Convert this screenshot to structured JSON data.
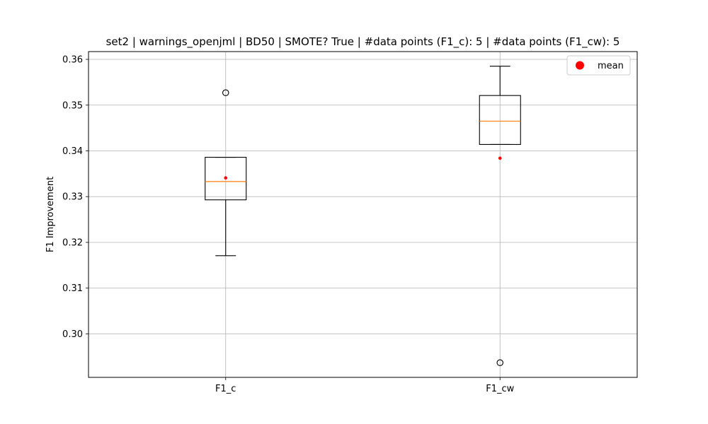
{
  "chart_data": {
    "type": "box",
    "title": "set2 | warnings_openjml | BD50 | SMOTE? True | #data points (F1_c): 5 | #data points (F1_cw): 5",
    "xlabel": "",
    "ylabel": "F1 Improvement",
    "ylim": [
      0.2905,
      0.3617
    ],
    "yticks": [
      0.3,
      0.31,
      0.32,
      0.33,
      0.34,
      0.35,
      0.36
    ],
    "ytick_labels": [
      "0.30",
      "0.31",
      "0.32",
      "0.33",
      "0.34",
      "0.35",
      "0.36"
    ],
    "grid": true,
    "legend": {
      "position": "top-right",
      "entries": [
        {
          "label": "mean",
          "color": "#ff0000",
          "marker": "circle"
        }
      ]
    },
    "categories": [
      "F1_c",
      "F1_cw"
    ],
    "boxes": [
      {
        "category": "F1_c",
        "whisker_low": 0.3171,
        "q1": 0.3293,
        "median": 0.3333,
        "q3": 0.3386,
        "whisker_high": 0.3386,
        "mean": 0.3341,
        "outliers": [
          0.3527
        ]
      },
      {
        "category": "F1_cw",
        "whisker_low": 0.3414,
        "q1": 0.3414,
        "median": 0.3465,
        "q3": 0.3521,
        "whisker_high": 0.3585,
        "mean": 0.3384,
        "outliers": [
          0.2937
        ]
      }
    ],
    "colors": {
      "box": "#000000",
      "median": "#ff7f0e",
      "mean": "#ff0000",
      "grid": "#b0b0b0"
    }
  }
}
